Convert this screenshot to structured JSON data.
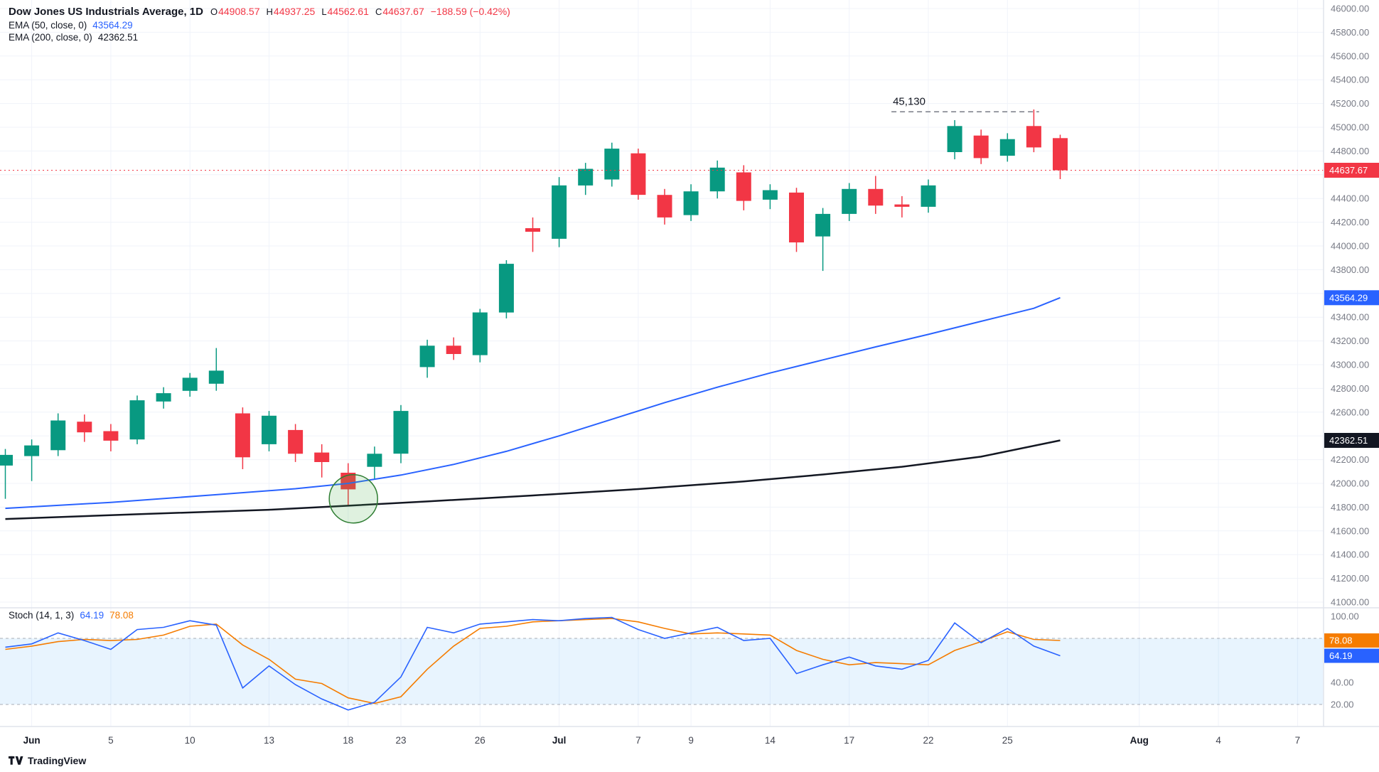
{
  "legend": {
    "title": "Dow Jones US Industrials Average, 1D",
    "ohlc": {
      "o_label": "O",
      "o": "44908.57",
      "h_label": "H",
      "h": "44937.25",
      "l_label": "L",
      "l": "44562.61",
      "c_label": "C",
      "c": "44637.67",
      "change": "−188.59 (−0.42%)"
    },
    "ema50": {
      "name": "EMA (50, close, 0)",
      "value": "43564.29"
    },
    "ema200": {
      "name": "EMA (200, close, 0)",
      "value": "42362.51"
    }
  },
  "stoch_legend": {
    "name": "Stoch (14, 1, 3)",
    "k": "64.19",
    "d": "78.08"
  },
  "watermark": "TradingView",
  "colors": {
    "up": "#089981",
    "down": "#f23645",
    "ema50": "#2962ff",
    "ema200": "#131722",
    "stoch_k": "#2962ff",
    "stoch_d": "#f57c00",
    "current_price": "#f23645",
    "grid": "#f0f3fa",
    "axis_text": "#787b86",
    "separator": "#e0e3eb"
  },
  "price_axis": {
    "max": 46000,
    "min": 41000,
    "step": 200,
    "skip_labels": [
      44600,
      43600,
      42400
    ],
    "badges": [
      {
        "value": "44637.67",
        "price": 44637.67,
        "color": "#f23645"
      },
      {
        "value": "43564.29",
        "price": 43564.29,
        "color": "#2962ff"
      },
      {
        "value": "42362.51",
        "price": 42362.51,
        "color": "#131722"
      }
    ]
  },
  "time_axis": {
    "ticks": [
      {
        "label": "Jun",
        "e": 1,
        "month": true
      },
      {
        "label": "5",
        "e": 4,
        "month": false
      },
      {
        "label": "10",
        "e": 7,
        "month": false
      },
      {
        "label": "13",
        "e": 10,
        "month": false
      },
      {
        "label": "18",
        "e": 13,
        "month": false
      },
      {
        "label": "23",
        "e": 15,
        "month": false
      },
      {
        "label": "26",
        "e": 18,
        "month": false
      },
      {
        "label": "Jul",
        "e": 21,
        "month": true
      },
      {
        "label": "7",
        "e": 24,
        "month": false
      },
      {
        "label": "9",
        "e": 26,
        "month": false
      },
      {
        "label": "14",
        "e": 29,
        "month": false
      },
      {
        "label": "17",
        "e": 32,
        "month": false
      },
      {
        "label": "22",
        "e": 35,
        "month": false
      },
      {
        "label": "25",
        "e": 38,
        "month": false
      },
      {
        "label": "Aug",
        "e": 43,
        "month": true
      },
      {
        "label": "4",
        "e": 46,
        "month": false
      },
      {
        "label": "7",
        "e": 49,
        "month": false
      }
    ]
  },
  "stoch_axis": {
    "labels": [
      100,
      80,
      40,
      20
    ],
    "band": [
      20,
      80
    ],
    "badges": [
      {
        "value": "78.08",
        "v": 78.08,
        "color": "#f57c00"
      },
      {
        "value": "64.19",
        "v": 64.19,
        "color": "#2962ff"
      }
    ]
  },
  "chart_data": {
    "type": "candlestick",
    "title": "Dow Jones US Industrials Average",
    "interval": "1D",
    "ylim": [
      41000,
      46000
    ],
    "legend_position": "top-left",
    "grid": true,
    "candles_ohlc": [
      [
        42150,
        42290,
        41870,
        42240
      ],
      [
        42230,
        42370,
        42020,
        42320
      ],
      [
        42280,
        42590,
        42230,
        42530
      ],
      [
        42520,
        42580,
        42350,
        42430
      ],
      [
        42440,
        42500,
        42270,
        42360
      ],
      [
        42370,
        42740,
        42330,
        42700
      ],
      [
        42690,
        42810,
        42630,
        42760
      ],
      [
        42780,
        42930,
        42730,
        42890
      ],
      [
        42840,
        43140,
        42780,
        42950
      ],
      [
        42590,
        42640,
        42120,
        42220
      ],
      [
        42330,
        42610,
        42270,
        42570
      ],
      [
        42450,
        42500,
        42180,
        42250
      ],
      [
        42260,
        42330,
        42050,
        42180
      ],
      [
        42090,
        42170,
        41810,
        41950
      ],
      [
        42140,
        42310,
        42030,
        42250
      ],
      [
        42250,
        42660,
        42170,
        42610
      ],
      [
        42980,
        43210,
        42890,
        43160
      ],
      [
        43160,
        43230,
        43040,
        43090
      ],
      [
        43080,
        43470,
        43020,
        43440
      ],
      [
        43440,
        43880,
        43390,
        43850
      ],
      [
        44150,
        44240,
        43950,
        44120
      ],
      [
        44060,
        44580,
        43990,
        44510
      ],
      [
        44510,
        44700,
        44430,
        44650
      ],
      [
        44560,
        44870,
        44500,
        44820
      ],
      [
        44780,
        44820,
        44390,
        44430
      ],
      [
        44430,
        44480,
        44180,
        44240
      ],
      [
        44260,
        44520,
        44210,
        44460
      ],
      [
        44460,
        44720,
        44400,
        44660
      ],
      [
        44620,
        44680,
        44300,
        44380
      ],
      [
        44390,
        44520,
        44310,
        44470
      ],
      [
        44450,
        44490,
        43950,
        44030
      ],
      [
        44080,
        44320,
        43790,
        44270
      ],
      [
        44270,
        44530,
        44210,
        44480
      ],
      [
        44480,
        44590,
        44270,
        44340
      ],
      [
        44350,
        44420,
        44240,
        44330
      ],
      [
        44330,
        44560,
        44280,
        44510
      ],
      [
        44790,
        45060,
        44730,
        45010
      ],
      [
        44930,
        44980,
        44690,
        44740
      ],
      [
        44760,
        44950,
        44710,
        44900
      ],
      [
        45010,
        45150,
        44790,
        44830
      ],
      [
        44908.57,
        44937.25,
        44562.61,
        44637.67
      ]
    ],
    "ema50_points": [
      [
        0,
        41790
      ],
      [
        4,
        41840
      ],
      [
        8,
        41905
      ],
      [
        11,
        41955
      ],
      [
        13,
        42000
      ],
      [
        15,
        42070
      ],
      [
        17,
        42160
      ],
      [
        19,
        42270
      ],
      [
        21,
        42400
      ],
      [
        23,
        42540
      ],
      [
        25,
        42680
      ],
      [
        27,
        42810
      ],
      [
        29,
        42930
      ],
      [
        31,
        43040
      ],
      [
        33,
        43150
      ],
      [
        35,
        43255
      ],
      [
        37,
        43365
      ],
      [
        39,
        43475
      ],
      [
        40,
        43564.29
      ]
    ],
    "ema200_points": [
      [
        0,
        41700
      ],
      [
        5,
        41740
      ],
      [
        10,
        41778
      ],
      [
        13,
        41812
      ],
      [
        16,
        41848
      ],
      [
        20,
        41898
      ],
      [
        24,
        41952
      ],
      [
        28,
        42016
      ],
      [
        31,
        42075
      ],
      [
        34,
        42140
      ],
      [
        37,
        42225
      ],
      [
        40,
        42362.51
      ]
    ],
    "stoch": {
      "k": [
        72,
        75,
        85,
        78,
        70,
        88,
        90,
        96,
        92,
        35,
        55,
        38,
        25,
        15,
        22,
        45,
        90,
        85,
        93,
        95,
        97,
        96,
        98,
        99,
        88,
        80,
        85,
        90,
        78,
        80,
        48,
        56,
        63,
        55,
        52,
        60,
        94,
        76,
        89,
        73,
        64.19
      ],
      "d": [
        70,
        73,
        77,
        79,
        78,
        79,
        83,
        91,
        93,
        74,
        61,
        43,
        39,
        26,
        21,
        27,
        52,
        73,
        89,
        91,
        95,
        96,
        97,
        98,
        95,
        89,
        84,
        85,
        84,
        83,
        69,
        61,
        56,
        58,
        57,
        56,
        69,
        77,
        86,
        79,
        78.08
      ]
    },
    "current_price": 44637.67,
    "annotations": {
      "high_line": {
        "label": "45,130",
        "price": 45130,
        "from_e": 33.6,
        "to_e": 39.2
      },
      "circle": {
        "e": 13.2,
        "price": 41870,
        "r": 34
      }
    }
  }
}
